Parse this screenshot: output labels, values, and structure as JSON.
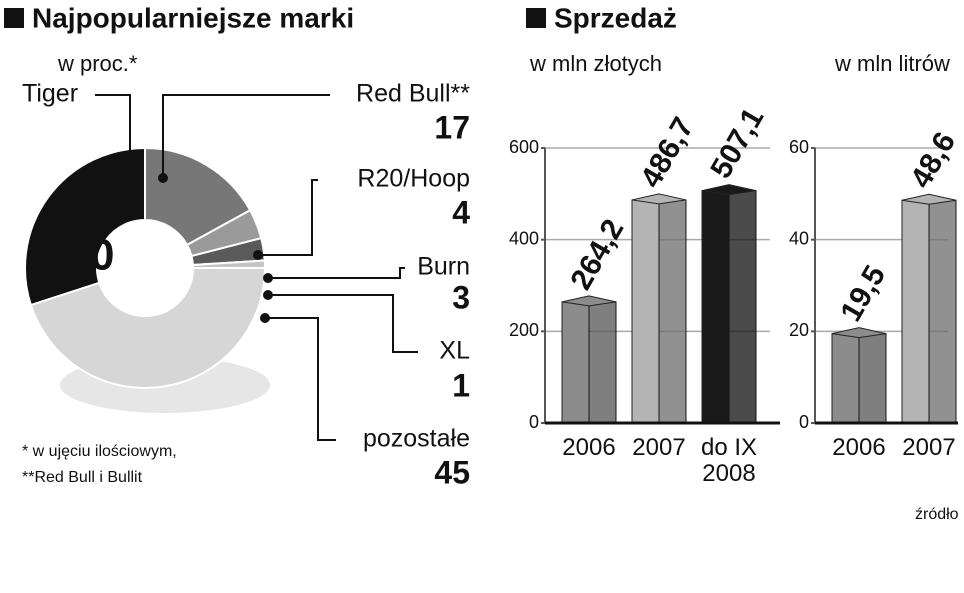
{
  "chart_data": [
    {
      "type": "pie",
      "title": "Najpopularniejsze marki",
      "subtitle": "w proc.*",
      "categories": [
        "Tiger",
        "Red Bull**",
        "R20/Hoop",
        "Burn",
        "XL",
        "pozostałe"
      ],
      "values": [
        30,
        17,
        4,
        3,
        1,
        45
      ],
      "colors": [
        "#111111",
        "#777777",
        "#9a9a9a",
        "#5a5a5a",
        "#c4c4c4",
        "#d6d6d6"
      ],
      "footnotes": [
        "* w ujęciu ilościowym,",
        "**Red Bull i Bullit"
      ]
    },
    {
      "type": "bar",
      "title": "Sprzedaż",
      "subtitle": "w mln złotych",
      "categories": [
        "2006",
        "2007",
        "do IX 2008"
      ],
      "values": [
        264.2,
        486.7,
        507.1
      ],
      "value_labels": [
        "264,2",
        "486,7",
        "507,1"
      ],
      "colors": [
        "#8c8c8c",
        "#b4b4b4",
        "#1a1a1a"
      ],
      "ylim": [
        0,
        600
      ],
      "yticks": [
        0,
        200,
        400,
        600
      ],
      "grid": true
    },
    {
      "type": "bar",
      "subtitle": "w mln litrów",
      "categories": [
        "2006",
        "2007"
      ],
      "values": [
        19.5,
        48.6
      ],
      "value_labels": [
        "19,5",
        "48,6"
      ],
      "colors": [
        "#8c8c8c",
        "#b4b4b4"
      ],
      "ylim": [
        0,
        60
      ],
      "yticks": [
        0,
        20,
        40,
        60
      ],
      "grid": true,
      "source": "źródło"
    }
  ]
}
